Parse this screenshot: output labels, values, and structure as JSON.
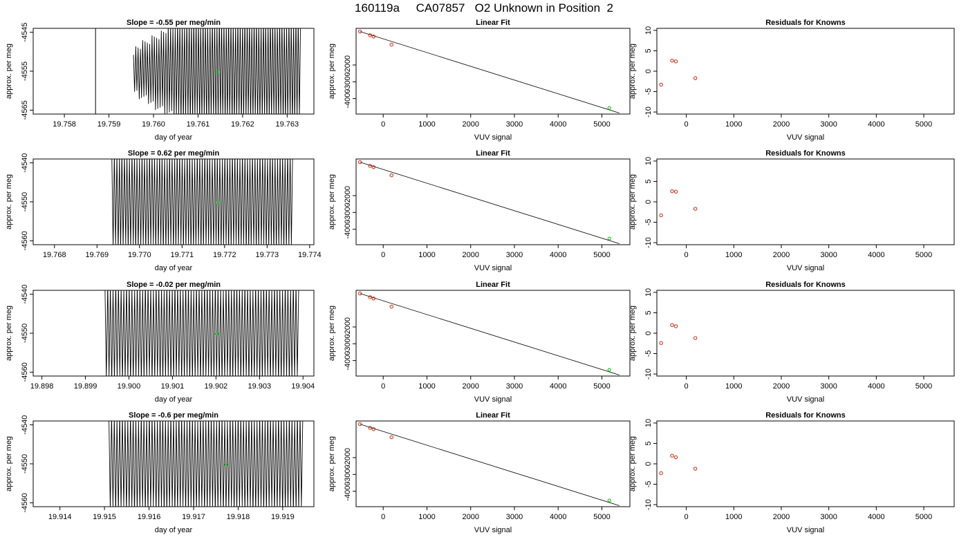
{
  "figure_title": "160119a     CA07857   O2 Unknown in Position  2",
  "colors": {
    "trace": "#000000",
    "known_point": "#cc2200",
    "unknown_point": "#22cc22",
    "axis": "#000000"
  },
  "labels": {
    "trace_xlabel": "day of year",
    "trace_ylabel": "approx. per meg",
    "fit_title": "Linear Fit",
    "fit_xlabel": "VUV signal",
    "fit_ylabel": "approx. per meg",
    "resid_title": "Residuals for Knowns",
    "resid_xlabel": "VUV signal",
    "resid_ylabel": "approx. per meg"
  },
  "chart_data": [
    {
      "type": "line",
      "panel": "trace",
      "row": 1,
      "title": "Slope =  -0.55  per meg/min",
      "xlabel": "day of year",
      "ylabel": "approx. per meg",
      "xlim": [
        19.7573,
        19.7636
      ],
      "ylim": [
        -4566,
        -4544
      ],
      "x_ticks": [
        "19.758",
        "19.759",
        "19.760",
        "19.761",
        "19.762",
        "19.763"
      ],
      "y_ticks": [
        "-4545",
        "-4555",
        "-4565"
      ],
      "signal": {
        "spike_x": 19.7587,
        "start_x": 19.75955,
        "end_x": 19.7633,
        "center": -4555,
        "amplitude": 12,
        "cycles": 72
      },
      "marker": {
        "x": 19.76143,
        "y": -4555.2
      }
    },
    {
      "type": "line",
      "panel": "trace",
      "row": 2,
      "title": "Slope =  0.62  per meg/min",
      "xlabel": "day of year",
      "ylabel": "approx. per meg",
      "xlim": [
        19.7675,
        19.7741
      ],
      "ylim": [
        -4561,
        -4539
      ],
      "x_ticks": [
        "19.768",
        "19.769",
        "19.770",
        "19.771",
        "19.772",
        "19.773",
        "19.774"
      ],
      "y_ticks": [
        "-4540",
        "-4550",
        "-4560"
      ],
      "signal": {
        "spike_x": null,
        "start_x": 19.76935,
        "end_x": 19.7736,
        "center": -4550,
        "amplitude": 11,
        "cycles": 72
      },
      "marker": {
        "x": 19.77185,
        "y": -4550.2
      }
    },
    {
      "type": "line",
      "panel": "trace",
      "row": 3,
      "title": "Slope =  -0.02  per meg/min",
      "xlabel": "day of year",
      "ylabel": "approx. per meg",
      "xlim": [
        19.8978,
        19.90425
      ],
      "ylim": [
        -4561,
        -4539
      ],
      "x_ticks": [
        "19.898",
        "19.899",
        "19.900",
        "19.901",
        "19.902",
        "19.903",
        "19.904"
      ],
      "y_ticks": [
        "-4540",
        "-4550",
        "-4560"
      ],
      "signal": {
        "spike_x": null,
        "start_x": 19.89945,
        "end_x": 19.9039,
        "center": -4550,
        "amplitude": 11,
        "cycles": 72
      },
      "marker": {
        "x": 19.90202,
        "y": -4550.2
      }
    },
    {
      "type": "line",
      "panel": "trace",
      "row": 4,
      "title": "Slope =  -0.6  per meg/min",
      "xlabel": "day of year",
      "ylabel": "approx. per meg",
      "xlim": [
        19.9134,
        19.9197
      ],
      "ylim": [
        -4561,
        -4539
      ],
      "x_ticks": [
        "19.914",
        "19.915",
        "19.916",
        "19.917",
        "19.918",
        "19.919"
      ],
      "y_ticks": [
        "-4540",
        "-4550",
        "-4560"
      ],
      "signal": {
        "spike_x": null,
        "start_x": 19.9151,
        "end_x": 19.91945,
        "center": -4550,
        "amplitude": 11,
        "cycles": 72
      },
      "marker": {
        "x": 19.91773,
        "y": -4550.2
      }
    },
    {
      "type": "scatter",
      "panel": "fit",
      "row": 1,
      "title": "Linear Fit",
      "xlabel": "VUV signal",
      "ylabel": "approx. per meg",
      "xlim": [
        -620,
        5640
      ],
      "ylim": [
        -4920,
        180
      ],
      "x_ticks": [
        "0",
        "1000",
        "2000",
        "3000",
        "4000",
        "5000"
      ],
      "y_ticks": [
        "-2000",
        "-3000",
        "-4000"
      ],
      "knowns": [
        [
          -530,
          -10
        ],
        [
          -300,
          -230
        ],
        [
          -220,
          -305
        ],
        [
          190,
          -790
        ]
      ],
      "unknown": [
        5170,
        -4555
      ],
      "fit_line": [
        [
          -530,
          -10
        ],
        [
          5400,
          -4860
        ]
      ]
    },
    {
      "type": "scatter",
      "panel": "fit",
      "row": 2,
      "title": "Linear Fit",
      "xlabel": "VUV signal",
      "ylabel": "approx. per meg",
      "xlim": [
        -620,
        5640
      ],
      "ylim": [
        -4920,
        180
      ],
      "x_ticks": [
        "0",
        "1000",
        "2000",
        "3000",
        "4000",
        "5000"
      ],
      "y_ticks": [
        "-2000",
        "-3000",
        "-4000"
      ],
      "knowns": [
        [
          -530,
          -10
        ],
        [
          -300,
          -230
        ],
        [
          -220,
          -305
        ],
        [
          190,
          -790
        ]
      ],
      "unknown": [
        5170,
        -4550
      ],
      "fit_line": [
        [
          -530,
          -10
        ],
        [
          5400,
          -4860
        ]
      ]
    },
    {
      "type": "scatter",
      "panel": "fit",
      "row": 3,
      "title": "Linear Fit",
      "xlabel": "VUV signal",
      "ylabel": "approx. per meg",
      "xlim": [
        -620,
        5640
      ],
      "ylim": [
        -4920,
        180
      ],
      "x_ticks": [
        "0",
        "1000",
        "2000",
        "3000",
        "4000",
        "5000"
      ],
      "y_ticks": [
        "-2000",
        "-3000",
        "-4000"
      ],
      "knowns": [
        [
          -530,
          -10
        ],
        [
          -300,
          -230
        ],
        [
          -220,
          -305
        ],
        [
          190,
          -790
        ]
      ],
      "unknown": [
        5170,
        -4550
      ],
      "fit_line": [
        [
          -530,
          -10
        ],
        [
          5400,
          -4860
        ]
      ]
    },
    {
      "type": "scatter",
      "panel": "fit",
      "row": 4,
      "title": "Linear Fit",
      "xlabel": "VUV signal",
      "ylabel": "approx. per meg",
      "xlim": [
        -620,
        5640
      ],
      "ylim": [
        -4920,
        180
      ],
      "x_ticks": [
        "0",
        "1000",
        "2000",
        "3000",
        "4000",
        "5000"
      ],
      "y_ticks": [
        "-2000",
        "-3000",
        "-4000"
      ],
      "knowns": [
        [
          -530,
          -10
        ],
        [
          -300,
          -230
        ],
        [
          -220,
          -305
        ],
        [
          190,
          -790
        ]
      ],
      "unknown": [
        5170,
        -4550
      ],
      "fit_line": [
        [
          -530,
          -10
        ],
        [
          5400,
          -4860
        ]
      ]
    },
    {
      "type": "scatter",
      "panel": "resid",
      "row": 1,
      "title": "Residuals for Knowns",
      "xlabel": "VUV signal",
      "ylabel": "approx. per meg",
      "xlim": [
        -620,
        5640
      ],
      "ylim": [
        -10.5,
        10.5
      ],
      "x_ticks": [
        "0",
        "1000",
        "2000",
        "3000",
        "4000",
        "5000"
      ],
      "y_ticks": [
        "-10",
        "-5",
        "0",
        "5",
        "10"
      ],
      "points": [
        [
          -530,
          -3.3
        ],
        [
          -300,
          2.6
        ],
        [
          -220,
          2.4
        ],
        [
          190,
          -1.7
        ]
      ]
    },
    {
      "type": "scatter",
      "panel": "resid",
      "row": 2,
      "title": "Residuals for Knowns",
      "xlabel": "VUV signal",
      "ylabel": "approx. per meg",
      "xlim": [
        -620,
        5640
      ],
      "ylim": [
        -10.5,
        10.5
      ],
      "x_ticks": [
        "0",
        "1000",
        "2000",
        "3000",
        "4000",
        "5000"
      ],
      "y_ticks": [
        "-10",
        "-5",
        "0",
        "5",
        "10"
      ],
      "points": [
        [
          -530,
          -3.3
        ],
        [
          -300,
          2.6
        ],
        [
          -220,
          2.5
        ],
        [
          190,
          -1.7
        ]
      ]
    },
    {
      "type": "scatter",
      "panel": "resid",
      "row": 3,
      "title": "Residuals for Knowns",
      "xlabel": "VUV signal",
      "ylabel": "approx. per meg",
      "xlim": [
        -620,
        5640
      ],
      "ylim": [
        -10.5,
        10.5
      ],
      "x_ticks": [
        "0",
        "1000",
        "2000",
        "3000",
        "4000",
        "5000"
      ],
      "y_ticks": [
        "-10",
        "-5",
        "0",
        "5",
        "10"
      ],
      "points": [
        [
          -530,
          -2.4
        ],
        [
          -300,
          2.0
        ],
        [
          -220,
          1.7
        ],
        [
          190,
          -1.2
        ]
      ]
    },
    {
      "type": "scatter",
      "panel": "resid",
      "row": 4,
      "title": "Residuals for Knowns",
      "xlabel": "VUV signal",
      "ylabel": "approx. per meg",
      "xlim": [
        -620,
        5640
      ],
      "ylim": [
        -10.5,
        10.5
      ],
      "x_ticks": [
        "0",
        "1000",
        "2000",
        "3000",
        "4000",
        "5000"
      ],
      "y_ticks": [
        "-10",
        "-5",
        "0",
        "5",
        "10"
      ],
      "points": [
        [
          -530,
          -2.3
        ],
        [
          -300,
          2.0
        ],
        [
          -220,
          1.6
        ],
        [
          190,
          -1.2
        ]
      ]
    }
  ]
}
